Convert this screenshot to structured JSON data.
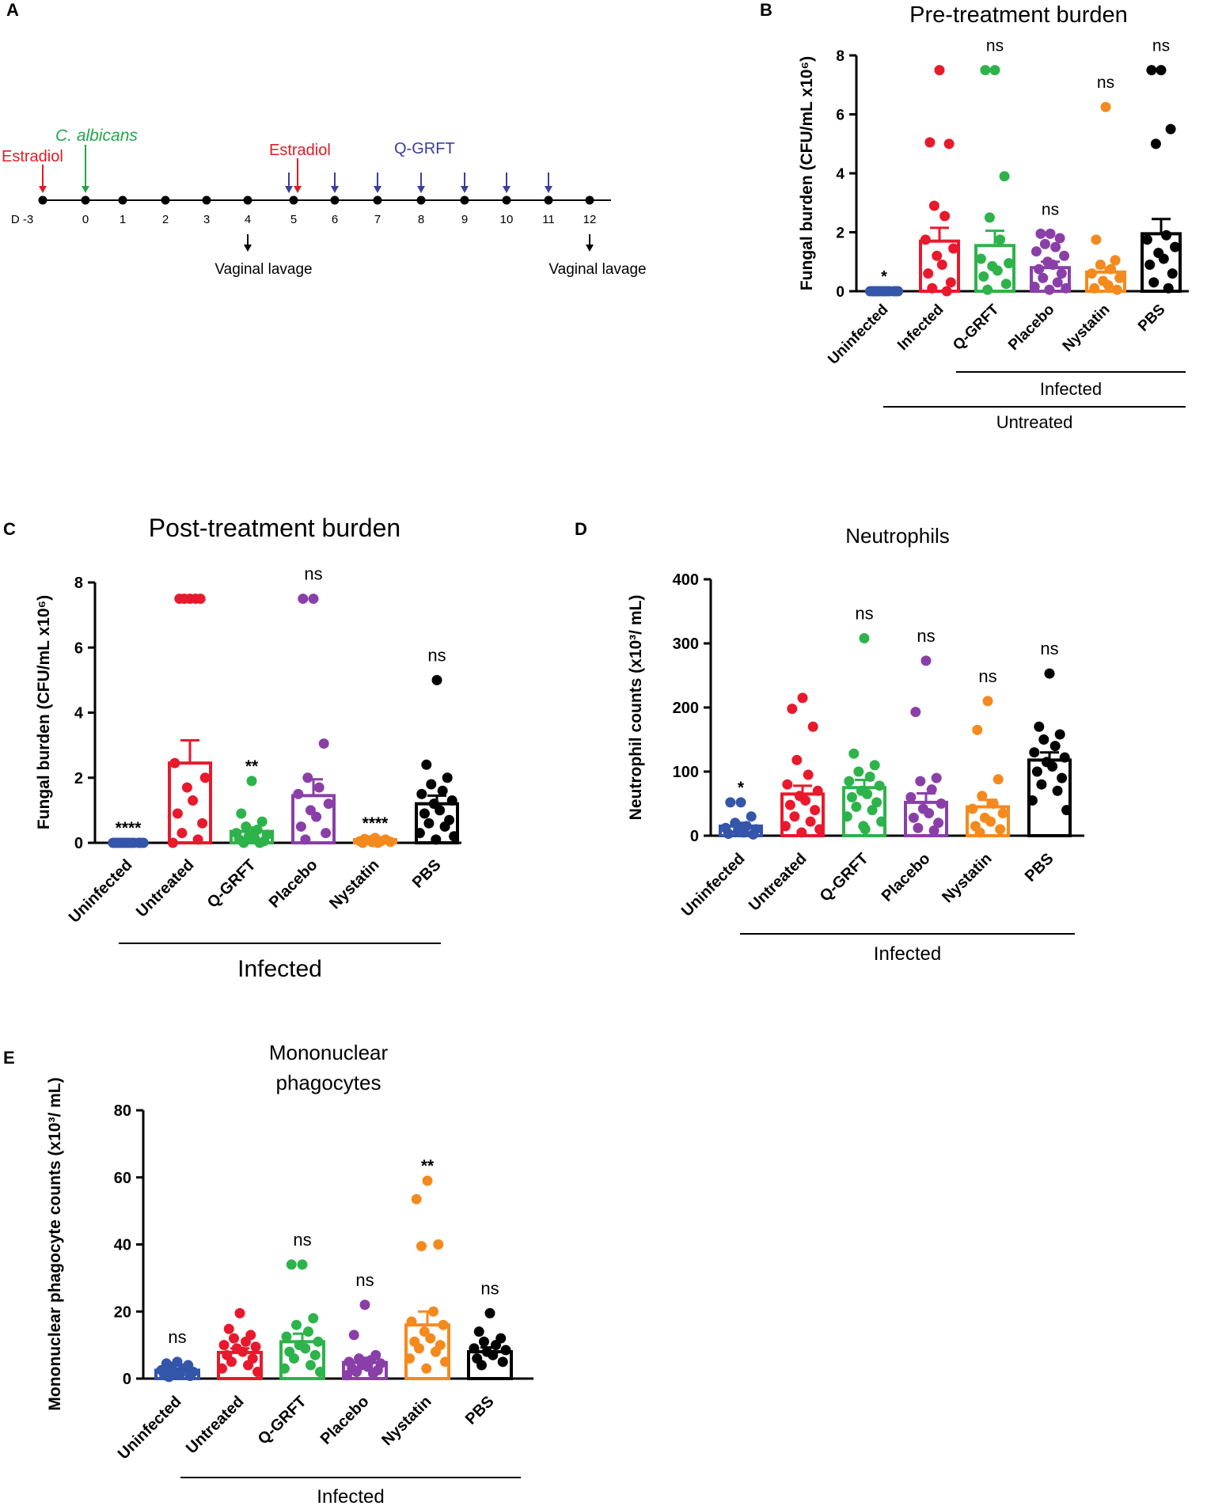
{
  "colors": {
    "Uninfected": "#3355aa",
    "Infected": "#e8192c",
    "Untreated": "#e8192c",
    "Q-GRFT": "#2db34a",
    "Placebo": "#8a3fa8",
    "Nystatin": "#f48a1e",
    "PBS": "#000000",
    "estradiol": "#e01b22",
    "c_albicans": "#22a64a",
    "qgrft": "#3a3ea0",
    "axis": "#000000"
  },
  "panel_labels": {
    "a": "A",
    "b": "B",
    "c": "C",
    "d": "D",
    "e": "E"
  },
  "timeline": {
    "days": [
      "D -3",
      "0",
      "1",
      "2",
      "3",
      "4",
      "5",
      "6",
      "7",
      "8",
      "9",
      "10",
      "11",
      "12"
    ],
    "estradiol_label": "Estradiol",
    "estradiol_label_2": "Estradiol",
    "c_albicans_label": "C. albicans",
    "qgrft_label": "Q-GRFT",
    "lavage_label_1": "Vaginal lavage",
    "lavage_label_2": "Vaginal lavage",
    "estradiol_days": [
      "D -3",
      "5"
    ],
    "infection_day": "0",
    "qgrft_days": [
      "5",
      "6",
      "7",
      "8",
      "9",
      "10",
      "11"
    ],
    "lavage_days": [
      "4",
      "12"
    ]
  },
  "chart_data": [
    {
      "id": "B",
      "type": "bar",
      "title": "Pre-treatment burden",
      "ylabel": "Fungal burden (CFU/mL x10⁶)",
      "ylim": [
        0,
        8
      ],
      "yticks": [
        "0",
        "2",
        "4",
        "6",
        "8"
      ],
      "categories": [
        "Uninfected",
        "Infected",
        "Q-GRFT",
        "Placebo",
        "Nystatin",
        "PBS"
      ],
      "means": [
        0.0,
        1.7,
        1.55,
        0.8,
        0.65,
        1.95
      ],
      "sem": [
        0.0,
        0.45,
        0.5,
        0.2,
        0.15,
        0.5
      ],
      "significance": [
        "*",
        "",
        "ns",
        "ns",
        "ns",
        "ns"
      ],
      "points": [
        [
          0,
          0,
          0,
          0,
          0,
          0,
          0,
          0,
          0,
          0,
          0,
          0
        ],
        [
          7.5,
          5.05,
          5.0,
          2.9,
          2.55,
          1.75,
          1.45,
          1.2,
          0.9,
          0.6,
          0.3,
          0.1,
          0.0
        ],
        [
          7.5,
          7.5,
          3.9,
          2.5,
          1.75,
          1.1,
          0.95,
          0.85,
          0.7,
          0.5,
          0.25,
          0.05
        ],
        [
          1.95,
          1.95,
          1.8,
          1.6,
          1.5,
          1.35,
          1.2,
          1.0,
          0.9,
          0.75,
          0.6,
          0.45,
          0.3,
          0.15,
          0.1,
          0.05
        ],
        [
          6.25,
          1.75,
          1.05,
          0.9,
          0.75,
          0.6,
          0.45,
          0.35,
          0.2,
          0.1,
          0.05
        ],
        [
          7.5,
          7.5,
          5.5,
          5.0,
          1.9,
          1.75,
          1.5,
          1.3,
          1.1,
          0.9,
          0.6,
          0.3,
          0.1
        ]
      ],
      "subgroups": [
        {
          "label": "Infected",
          "from": "Q-GRFT",
          "to": "PBS"
        },
        {
          "label": "Untreated",
          "from": "Infected",
          "to": "PBS"
        }
      ]
    },
    {
      "id": "C",
      "type": "bar",
      "title": "Post-treatment burden",
      "ylabel": "Fungal burden (CFU/mL x10⁶)",
      "ylim": [
        0,
        8
      ],
      "yticks": [
        "0",
        "2",
        "4",
        "6",
        "8"
      ],
      "categories": [
        "Uninfected",
        "Untreated",
        "Q-GRFT",
        "Placebo",
        "Nystatin",
        "PBS"
      ],
      "means": [
        0.0,
        2.45,
        0.35,
        1.45,
        0.1,
        1.2
      ],
      "sem": [
        0.0,
        0.7,
        0.12,
        0.5,
        0.04,
        0.25
      ],
      "significance": [
        "****",
        "",
        "**",
        "ns",
        "****",
        "ns"
      ],
      "points": [
        [
          0,
          0,
          0,
          0,
          0,
          0,
          0,
          0,
          0,
          0,
          0,
          0
        ],
        [
          7.5,
          7.5,
          7.5,
          7.5,
          7.5,
          2.45,
          2.0,
          1.7,
          1.3,
          0.9,
          0.6,
          0.3,
          0.1,
          0.0
        ],
        [
          1.9,
          0.9,
          0.65,
          0.5,
          0.4,
          0.3,
          0.25,
          0.2,
          0.15,
          0.1,
          0.05,
          0.0,
          0.0
        ],
        [
          7.5,
          7.5,
          3.05,
          2.0,
          1.7,
          1.5,
          1.2,
          1.0,
          0.8,
          0.5,
          0.3,
          0.1
        ],
        [
          0.15,
          0.12,
          0.1,
          0.08,
          0.05,
          0.05,
          0.03,
          0.02,
          0.0,
          0.0
        ],
        [
          5.0,
          2.4,
          2.0,
          1.8,
          1.6,
          1.5,
          1.3,
          1.2,
          1.0,
          0.9,
          0.7,
          0.6,
          0.5,
          0.3,
          0.2,
          0.1
        ]
      ],
      "subgroups": [
        {
          "label": "Infected",
          "from": "Untreated",
          "to": "PBS"
        }
      ]
    },
    {
      "id": "D",
      "type": "bar",
      "title": "Neutrophils",
      "ylabel": "Neutrophil counts (x10³/ mL)",
      "ylim": [
        0,
        400
      ],
      "yticks": [
        "0",
        "100",
        "200",
        "300",
        "400"
      ],
      "categories": [
        "Uninfected",
        "Untreated",
        "Q-GRFT",
        "Placebo",
        "Nystatin",
        "PBS"
      ],
      "means": [
        15,
        65,
        75,
        52,
        45,
        118
      ],
      "sem": [
        5,
        13,
        12,
        14,
        11,
        12
      ],
      "significance": [
        "*",
        "",
        "ns",
        "ns",
        "ns",
        "ns"
      ],
      "points": [
        [
          52,
          52,
          30,
          20,
          15,
          12,
          10,
          8,
          5,
          3,
          2
        ],
        [
          215,
          198,
          170,
          118,
          95,
          80,
          70,
          62,
          55,
          48,
          40,
          30,
          22,
          15,
          10,
          5
        ],
        [
          308,
          128,
          110,
          100,
          92,
          85,
          78,
          70,
          65,
          60,
          52,
          45,
          40,
          30,
          22,
          15,
          10
        ],
        [
          273,
          193,
          90,
          85,
          72,
          60,
          50,
          42,
          35,
          28,
          20,
          12,
          8
        ],
        [
          210,
          165,
          88,
          62,
          50,
          42,
          35,
          28,
          22,
          15,
          10,
          5
        ],
        [
          253,
          170,
          158,
          150,
          140,
          130,
          122,
          115,
          108,
          100,
          90,
          80,
          70,
          55,
          40
        ]
      ],
      "subgroups": [
        {
          "label": "Infected",
          "from": "Untreated",
          "to": "PBS"
        }
      ]
    },
    {
      "id": "E",
      "type": "bar",
      "title": "Mononuclear phagocytes",
      "ylabel": "Mononuclear phagocyte counts (x10³/ mL)",
      "ylim": [
        0,
        80
      ],
      "yticks": [
        "0",
        "20",
        "40",
        "60",
        "80"
      ],
      "categories": [
        "Uninfected",
        "Untreated",
        "Q-GRFT",
        "Placebo",
        "Nystatin",
        "PBS"
      ],
      "means": [
        2.5,
        7.8,
        11.0,
        4.8,
        16.0,
        8.0
      ],
      "sem": [
        0.5,
        1.2,
        2.4,
        1.4,
        4.0,
        1.3
      ],
      "significance": [
        "ns",
        "",
        "ns",
        "ns",
        "**",
        "ns"
      ],
      "points": [
        [
          5,
          4.5,
          4,
          3.5,
          3,
          2.5,
          2,
          1.8,
          1.5,
          1,
          0.8,
          0.5
        ],
        [
          19.5,
          14.8,
          13,
          12,
          11,
          10,
          9.5,
          9,
          8,
          7,
          6,
          5,
          4,
          3,
          2
        ],
        [
          34,
          34,
          18,
          16,
          14,
          12.5,
          11,
          10,
          9,
          8,
          7,
          6,
          4,
          3,
          2
        ],
        [
          22,
          13,
          7,
          6,
          5.5,
          5,
          4.5,
          4,
          3.5,
          3,
          2.5,
          2,
          1.5,
          1
        ],
        [
          59,
          53.5,
          40,
          39.5,
          20,
          17,
          16,
          14,
          12,
          11,
          10,
          9,
          8,
          6,
          5,
          3
        ],
        [
          19.5,
          14,
          12,
          11,
          10,
          9,
          8.5,
          8,
          7,
          6,
          5,
          4
        ]
      ],
      "subgroups": [
        {
          "label": "Infected",
          "from": "Untreated",
          "to": "PBS"
        }
      ]
    }
  ]
}
